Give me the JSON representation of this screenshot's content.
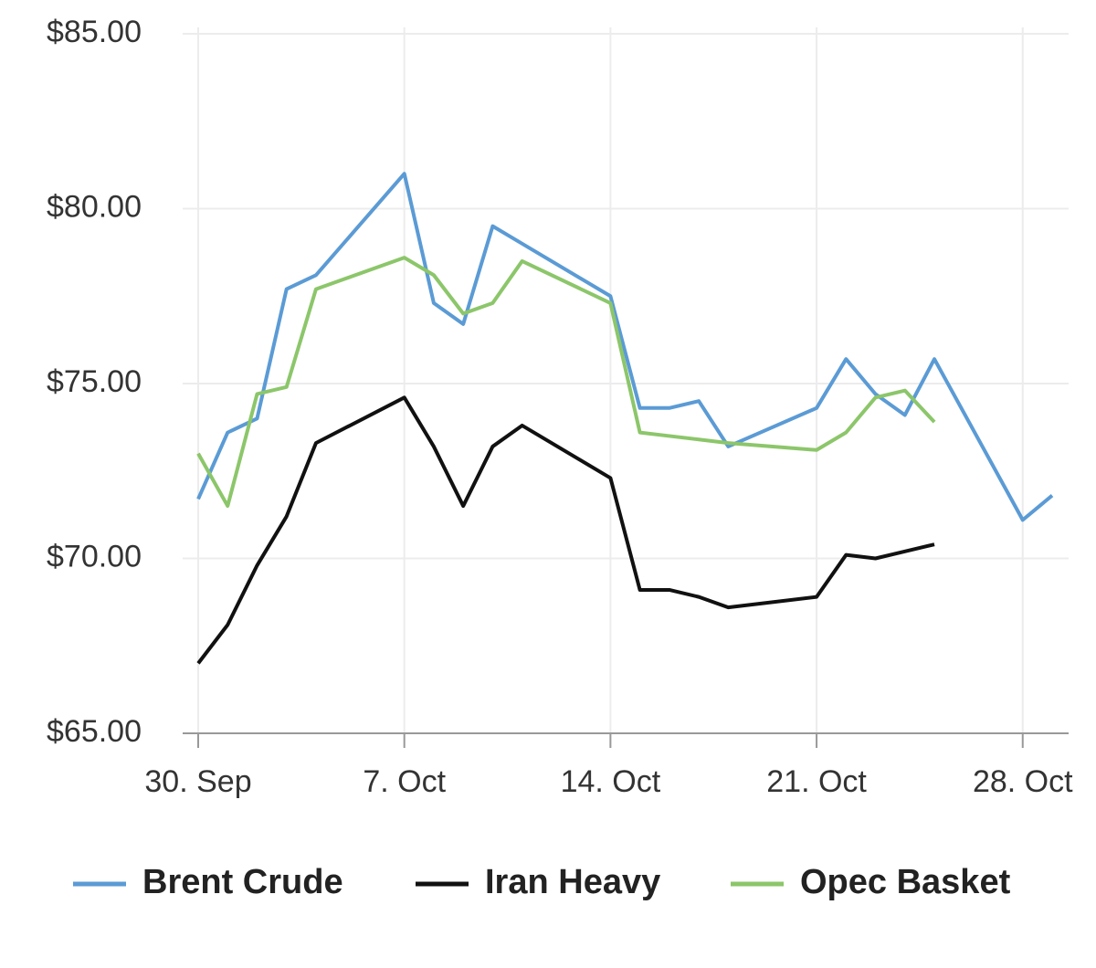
{
  "chart_data": {
    "type": "line",
    "x": [
      "30. Sep",
      "1. Oct",
      "2. Oct",
      "3. Oct",
      "4. Oct",
      "7. Oct",
      "8. Oct",
      "9. Oct",
      "10. Oct",
      "11. Oct",
      "14. Oct",
      "15. Oct",
      "16. Oct",
      "17. Oct",
      "18. Oct",
      "21. Oct",
      "22. Oct",
      "23. Oct",
      "24. Oct",
      "25. Oct",
      "28. Oct",
      "29. Oct"
    ],
    "series": [
      {
        "name": "Brent Crude",
        "color": "#5b9bd5",
        "values": [
          71.7,
          73.6,
          74.0,
          77.7,
          78.1,
          81.0,
          77.3,
          76.7,
          79.5,
          79.0,
          77.5,
          74.3,
          74.3,
          74.5,
          73.2,
          74.3,
          75.7,
          74.7,
          74.1,
          75.7,
          71.1,
          71.8
        ]
      },
      {
        "name": "Iran Heavy",
        "color": "#111111",
        "values": [
          67.0,
          68.1,
          69.8,
          71.2,
          73.3,
          74.6,
          73.2,
          71.5,
          73.2,
          73.8,
          72.3,
          69.1,
          69.1,
          68.9,
          68.6,
          68.9,
          70.1,
          70.0,
          70.2,
          70.4,
          null,
          null
        ]
      },
      {
        "name": "Opec Basket",
        "color": "#8cc66a",
        "values": [
          73.0,
          71.5,
          74.7,
          74.9,
          77.7,
          78.6,
          78.1,
          77.0,
          77.3,
          78.5,
          77.3,
          73.6,
          73.5,
          73.4,
          73.3,
          73.1,
          73.6,
          74.6,
          74.8,
          73.9,
          null,
          null
        ]
      }
    ],
    "xlim": [
      "30. Sep",
      "29. Oct"
    ],
    "xticks": [
      "30. Sep",
      "7. Oct",
      "14. Oct",
      "21. Oct",
      "28. Oct"
    ],
    "ylim": [
      65,
      85
    ],
    "yticks": [
      {
        "value": 65,
        "label": "$65.00"
      },
      {
        "value": 70,
        "label": "$70.00"
      },
      {
        "value": 75,
        "label": "$75.00"
      },
      {
        "value": 80,
        "label": "$80.00"
      },
      {
        "value": 85,
        "label": "$85.00"
      }
    ],
    "grid": true,
    "legend": "bottom"
  }
}
